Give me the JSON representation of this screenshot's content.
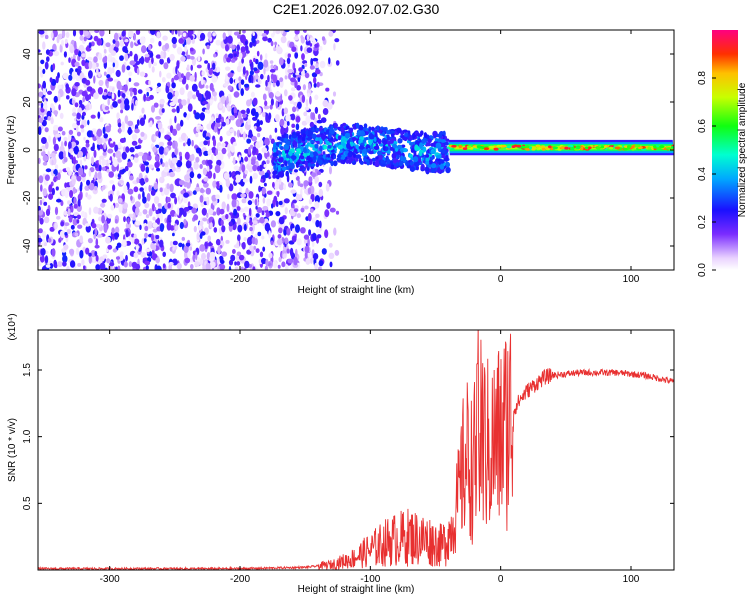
{
  "title": "C2E1.2026.092.07.02.G30",
  "colorbar": {
    "label": "Normalized spectral amplitude",
    "ticks": [
      "0.0",
      "0.2",
      "0.4",
      "0.6",
      "0.8"
    ],
    "range": [
      0,
      1
    ]
  },
  "chart_data": [
    {
      "type": "heatmap",
      "name": "spectrogram",
      "xlabel": "Height of straight line (km)",
      "ylabel": "Frequency (Hz)",
      "xlim": [
        -355,
        133
      ],
      "ylim": [
        -50,
        50
      ],
      "xticks": [
        -300,
        -200,
        -100,
        0,
        100
      ],
      "yticks": [
        -40,
        -20,
        0,
        20,
        40
      ],
      "regions": [
        {
          "name": "noise",
          "x_range": [
            -355,
            -140
          ],
          "f_range": [
            -50,
            50
          ],
          "amplitude": [
            0.0,
            0.25
          ]
        },
        {
          "name": "signal-onset",
          "x_range": [
            -175,
            -40
          ],
          "f_center": 0,
          "f_halfwidth": 8,
          "amplitude": [
            0.2,
            0.5
          ]
        },
        {
          "name": "signal-strong",
          "x_range": [
            -40,
            133
          ],
          "f_center": 1,
          "f_halfwidth": 2.5,
          "amplitude": [
            0.5,
            0.95
          ]
        }
      ]
    },
    {
      "type": "line",
      "name": "snr",
      "xlabel": "Height of straight line (km)",
      "ylabel": "SNR (10 * v/v)",
      "y_multiplier": "(x10⁴)",
      "y_unit": "x10^4",
      "xlim": [
        -355,
        133
      ],
      "ylim": [
        0,
        1.8
      ],
      "xticks": [
        -300,
        -200,
        -100,
        0,
        100
      ],
      "yticks": [
        0.5,
        1.0,
        1.5
      ],
      "ytick_labels": [
        "0.5",
        "1.0",
        "1.5"
      ],
      "series": [
        {
          "name": "SNR",
          "color": "#e83030",
          "x": [
            -355,
            -300,
            -250,
            -200,
            -150,
            -130,
            -115,
            -100,
            -85,
            -70,
            -55,
            -45,
            -38,
            -32,
            -28,
            -25,
            -22,
            -18,
            -15,
            -12,
            -8,
            -5,
            0,
            5,
            10,
            15,
            20,
            25,
            30,
            35,
            40,
            50,
            60,
            70,
            80,
            90,
            100,
            110,
            120,
            133
          ],
          "y": [
            0.01,
            0.01,
            0.01,
            0.01,
            0.02,
            0.04,
            0.08,
            0.15,
            0.22,
            0.25,
            0.22,
            0.18,
            0.3,
            0.55,
            0.8,
            0.85,
            0.75,
            0.9,
            1.0,
            0.95,
            0.9,
            0.95,
            1.0,
            1.1,
            1.2,
            1.28,
            1.34,
            1.38,
            1.42,
            1.45,
            1.46,
            1.47,
            1.48,
            1.48,
            1.48,
            1.48,
            1.47,
            1.46,
            1.44,
            1.41
          ]
        }
      ]
    }
  ]
}
